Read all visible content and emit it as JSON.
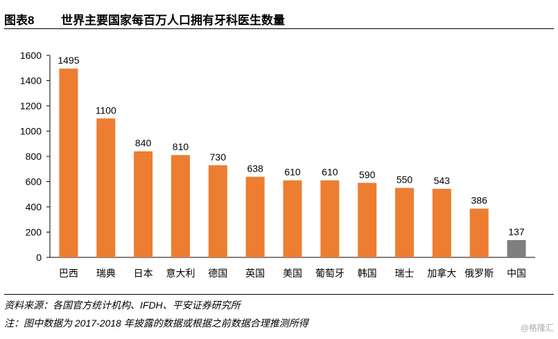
{
  "header": {
    "figure_label": "图表8",
    "title": "世界主要国家每百万人口拥有牙科医生数量"
  },
  "chart_data": {
    "type": "bar",
    "title": "世界主要国家每百万人口拥有牙科医生数量",
    "categories": [
      "巴西",
      "瑞典",
      "日本",
      "意大利",
      "德国",
      "英国",
      "美国",
      "葡萄牙",
      "韩国",
      "瑞士",
      "加拿大",
      "俄罗斯",
      "中国"
    ],
    "values": [
      1495,
      1100,
      840,
      810,
      730,
      638,
      610,
      610,
      590,
      550,
      543,
      386,
      137
    ],
    "ylim": [
      0,
      1600
    ],
    "yticks": [
      0,
      200,
      400,
      600,
      800,
      1000,
      1200,
      1400,
      1600
    ],
    "xlabel": "",
    "ylabel": "",
    "colors": {
      "default": "#ED7D31",
      "highlight": "#7F7F7F"
    },
    "highlight_category": "中国",
    "grid": false
  },
  "footer": {
    "source": "资料来源：各国官方统计机构、IFDH、平安证券研究所",
    "note": "注：图中数据为 2017-2018 年披露的数据或根据之前数据合理推测所得"
  },
  "watermark": "@格隆汇"
}
